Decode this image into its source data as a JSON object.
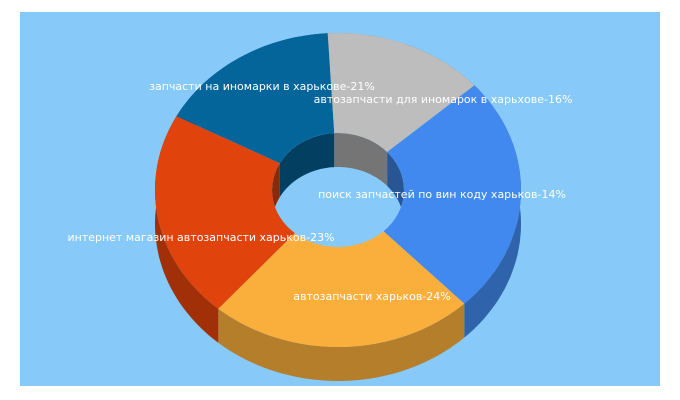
{
  "colors": {
    "background": "#87cafa"
  },
  "chart_data": {
    "type": "pie",
    "style": "3d-donut",
    "title": "",
    "slices": [
      {
        "label": "автозапчасти для иномарок в харьхове",
        "value": 16,
        "color": "#04659b",
        "label_text": "автозапчасти для иномарок в харьхове-16%"
      },
      {
        "label": "поиск запчастей по вин коду харьков",
        "value": 14,
        "color": "#bdbdbd",
        "label_text": "поиск запчастей по вин коду харьков-14%"
      },
      {
        "label": "автозапчасти харьков",
        "value": 24,
        "color": "#4189ef",
        "label_text": "автозапчасти харьков-24%"
      },
      {
        "label": "интернет магазин автозапчасти харьков",
        "value": 23,
        "color": "#faaf3c",
        "label_text": "интернет магазин автозапчасти харьков-23%"
      },
      {
        "label": "запчасти на иномарки в харькове",
        "value": 21,
        "color": "#e0430b",
        "label_text": "запчасти на иномарки в харькове-21%"
      }
    ]
  }
}
